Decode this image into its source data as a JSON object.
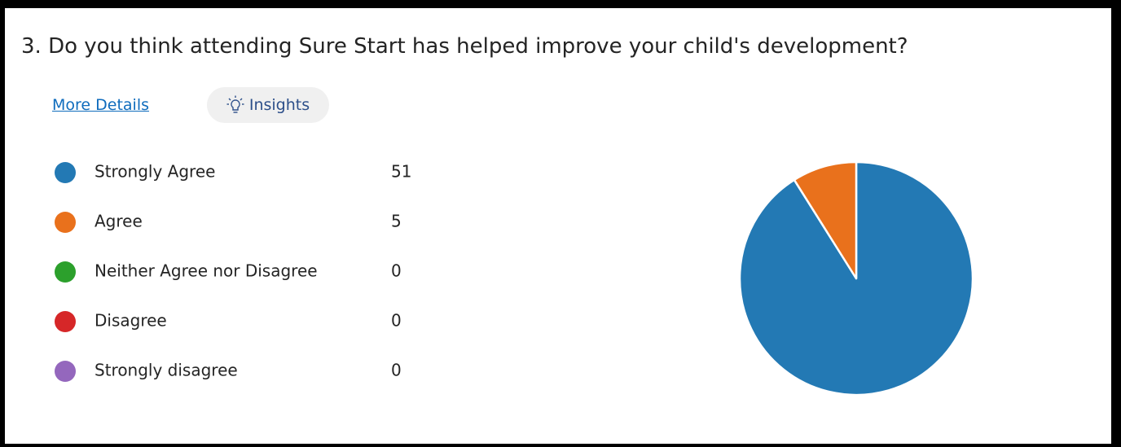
{
  "links": {
    "more_details": "More Details",
    "insights": "Insights"
  },
  "chart_data": {
    "type": "pie",
    "title": "3. Do you think attending Sure Start has helped improve your child's development?",
    "categories": [
      "Strongly Agree",
      "Agree",
      "Neither Agree nor Disagree",
      "Disagree",
      "Strongly disagree"
    ],
    "values": [
      51,
      5,
      0,
      0,
      0
    ],
    "colors": [
      "#2379b4",
      "#e9711c",
      "#2ca02c",
      "#d62728",
      "#9467bd"
    ]
  }
}
